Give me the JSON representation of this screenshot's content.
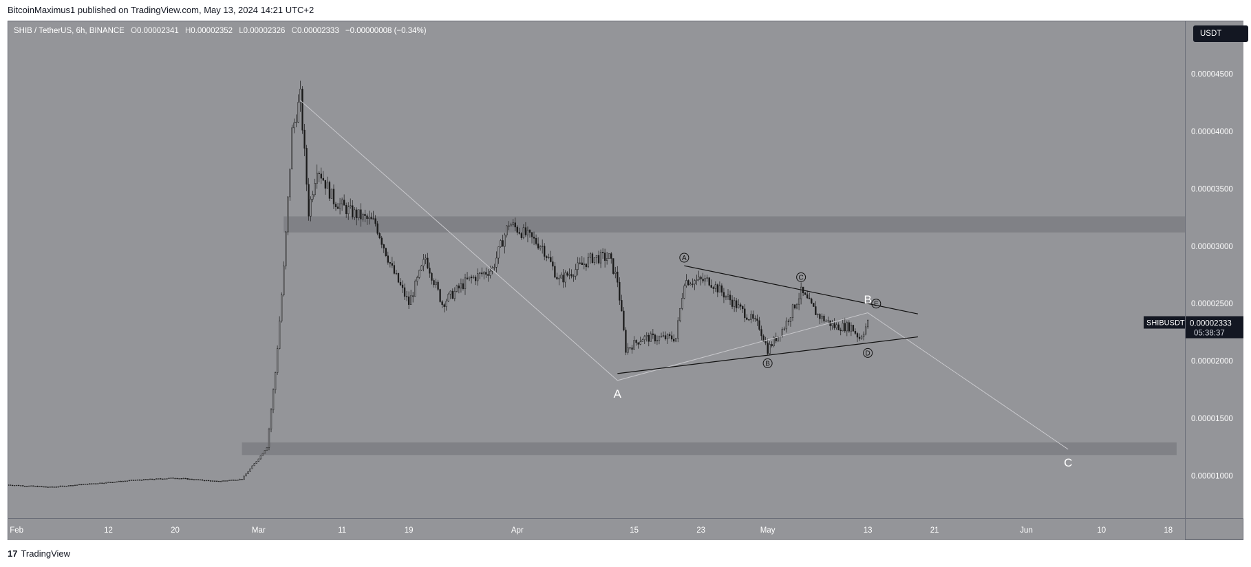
{
  "header": {
    "publisher_text": "BitcoinMaximus1 published on TradingView.com, May 13, 2024 14:21 UTC+2"
  },
  "legend": {
    "symbol": "SHIB / TetherUS, 6h, BINANCE",
    "open_label": "O",
    "open": "0.00002341",
    "high_label": "H",
    "high": "0.00002352",
    "low_label": "L",
    "low": "0.00002326",
    "close_label": "C",
    "close": "0.00002333",
    "change": "−0.00000008 (−0.34%)"
  },
  "currency_button": "USDT",
  "price_tag": {
    "symbol": "SHIBUSDT",
    "price": "0.00002333",
    "countdown": "05:38:37"
  },
  "footer": {
    "logo_mark": "17",
    "brand": "TradingView"
  },
  "colors": {
    "background": "#949599",
    "candle": "#1a1a1a",
    "zone": "#7d7e83",
    "wave_line": "#c8c8cc",
    "text": "#ffffff"
  },
  "chart_data": {
    "type": "candlestick",
    "title": "SHIB / TetherUS, 6h, BINANCE",
    "ylim": [
      6.3e-06,
      4.96e-05
    ],
    "y_ticks": [
      {
        "value": 4.5e-05,
        "label": "0.00004500"
      },
      {
        "value": 4e-05,
        "label": "0.00004000"
      },
      {
        "value": 3.5e-05,
        "label": "0.00003500"
      },
      {
        "value": 3e-05,
        "label": "0.00003000"
      },
      {
        "value": 2.5e-05,
        "label": "0.00002500"
      },
      {
        "value": 2e-05,
        "label": "0.00002000"
      },
      {
        "value": 1.5e-05,
        "label": "0.00001500"
      },
      {
        "value": 1e-05,
        "label": "0.00001000"
      }
    ],
    "x_range": [
      "2024-01-31",
      "2024-06-20"
    ],
    "x_ticks": [
      {
        "date": "2024-02-01",
        "label": "Feb"
      },
      {
        "date": "2024-02-12",
        "label": "12"
      },
      {
        "date": "2024-02-20",
        "label": "20"
      },
      {
        "date": "2024-03-01",
        "label": "Mar"
      },
      {
        "date": "2024-03-11",
        "label": "11"
      },
      {
        "date": "2024-03-19",
        "label": "19"
      },
      {
        "date": "2024-04-01",
        "label": "Apr"
      },
      {
        "date": "2024-04-15",
        "label": "15"
      },
      {
        "date": "2024-04-23",
        "label": "23"
      },
      {
        "date": "2024-05-01",
        "label": "May"
      },
      {
        "date": "2024-05-13",
        "label": "13"
      },
      {
        "date": "2024-05-21",
        "label": "21"
      },
      {
        "date": "2024-06-01",
        "label": "Jun"
      },
      {
        "date": "2024-06-10",
        "label": "10"
      },
      {
        "date": "2024-06-18",
        "label": "18"
      }
    ],
    "price_path": [
      [
        "2024-01-31",
        9.2e-06
      ],
      [
        "2024-02-05",
        9e-06
      ],
      [
        "2024-02-10",
        9.3e-06
      ],
      [
        "2024-02-15",
        9.6e-06
      ],
      [
        "2024-02-20",
        9.8e-06
      ],
      [
        "2024-02-25",
        9.5e-06
      ],
      [
        "2024-02-28",
        9.7e-06
      ],
      [
        "2024-03-01",
        1.15e-05
      ],
      [
        "2024-03-02",
        1.25e-05
      ],
      [
        "2024-03-03",
        1.9e-05
      ],
      [
        "2024-03-04",
        2.8e-05
      ],
      [
        "2024-03-05",
        4e-05
      ],
      [
        "2024-03-06",
        4.3e-05
      ],
      [
        "2024-03-07",
        3.3e-05
      ],
      [
        "2024-03-08",
        3.7e-05
      ],
      [
        "2024-03-10",
        3.4e-05
      ],
      [
        "2024-03-12",
        3.3e-05
      ],
      [
        "2024-03-15",
        3.2e-05
      ],
      [
        "2024-03-17",
        2.8e-05
      ],
      [
        "2024-03-19",
        2.5e-05
      ],
      [
        "2024-03-21",
        2.9e-05
      ],
      [
        "2024-03-23",
        2.5e-05
      ],
      [
        "2024-03-26",
        2.7e-05
      ],
      [
        "2024-03-29",
        2.8e-05
      ],
      [
        "2024-03-31",
        3.2e-05
      ],
      [
        "2024-04-02",
        3.1e-05
      ],
      [
        "2024-04-04",
        3e-05
      ],
      [
        "2024-04-06",
        2.7e-05
      ],
      [
        "2024-04-08",
        2.8e-05
      ],
      [
        "2024-04-10",
        2.9e-05
      ],
      [
        "2024-04-12",
        2.9e-05
      ],
      [
        "2024-04-13",
        2.7e-05
      ],
      [
        "2024-04-14",
        2.1e-05
      ],
      [
        "2024-04-16",
        2.2e-05
      ],
      [
        "2024-04-18",
        2.2e-05
      ],
      [
        "2024-04-20",
        2.2e-05
      ],
      [
        "2024-04-21",
        2.7e-05
      ],
      [
        "2024-04-24",
        2.7e-05
      ],
      [
        "2024-04-27",
        2.5e-05
      ],
      [
        "2024-04-30",
        2.3e-05
      ],
      [
        "2024-05-01",
        2.1e-05
      ],
      [
        "2024-05-03",
        2.3e-05
      ],
      [
        "2024-05-05",
        2.6e-05
      ],
      [
        "2024-05-07",
        2.4e-05
      ],
      [
        "2024-05-09",
        2.3e-05
      ],
      [
        "2024-05-11",
        2.3e-05
      ],
      [
        "2024-05-12",
        2.2e-05
      ],
      [
        "2024-05-13",
        2.33e-05
      ]
    ],
    "zones": [
      {
        "from_date": "2024-03-04",
        "to_date": "2024-06-21",
        "low": 3.12e-05,
        "high": 3.26e-05
      },
      {
        "from_date": "2024-02-28",
        "to_date": "2024-06-19",
        "low": 1.18e-05,
        "high": 1.29e-05
      }
    ],
    "trend_lines": [
      {
        "from": [
          "2024-04-13",
          1.89e-05
        ],
        "to": [
          "2024-05-19",
          2.21e-05
        ]
      },
      {
        "from": [
          "2024-04-21",
          2.83e-05
        ],
        "to": [
          "2024-05-19",
          2.41e-05
        ]
      }
    ],
    "wave_path": [
      [
        "2024-03-06",
        4.27e-05
      ],
      [
        "2024-04-13",
        1.83e-05
      ],
      [
        "2024-05-13",
        2.42e-05
      ],
      [
        "2024-06-06",
        1.23e-05
      ]
    ],
    "wave_labels": [
      {
        "text": "A",
        "date": "2024-04-13",
        "price": 1.68e-05
      },
      {
        "text": "B",
        "date": "2024-05-13",
        "price": 2.5e-05
      },
      {
        "text": "C",
        "date": "2024-06-06",
        "price": 1.08e-05
      }
    ],
    "subwave_labels": [
      {
        "text": "A",
        "date": "2024-04-21",
        "price": 2.9e-05
      },
      {
        "text": "B",
        "date": "2024-05-01",
        "price": 1.98e-05
      },
      {
        "text": "C",
        "date": "2024-05-05",
        "price": 2.73e-05
      },
      {
        "text": "D",
        "date": "2024-05-13",
        "price": 2.07e-05
      },
      {
        "text": "E",
        "date": "2024-05-14",
        "price": 2.5e-05
      }
    ],
    "last_price": 2.33e-05
  }
}
